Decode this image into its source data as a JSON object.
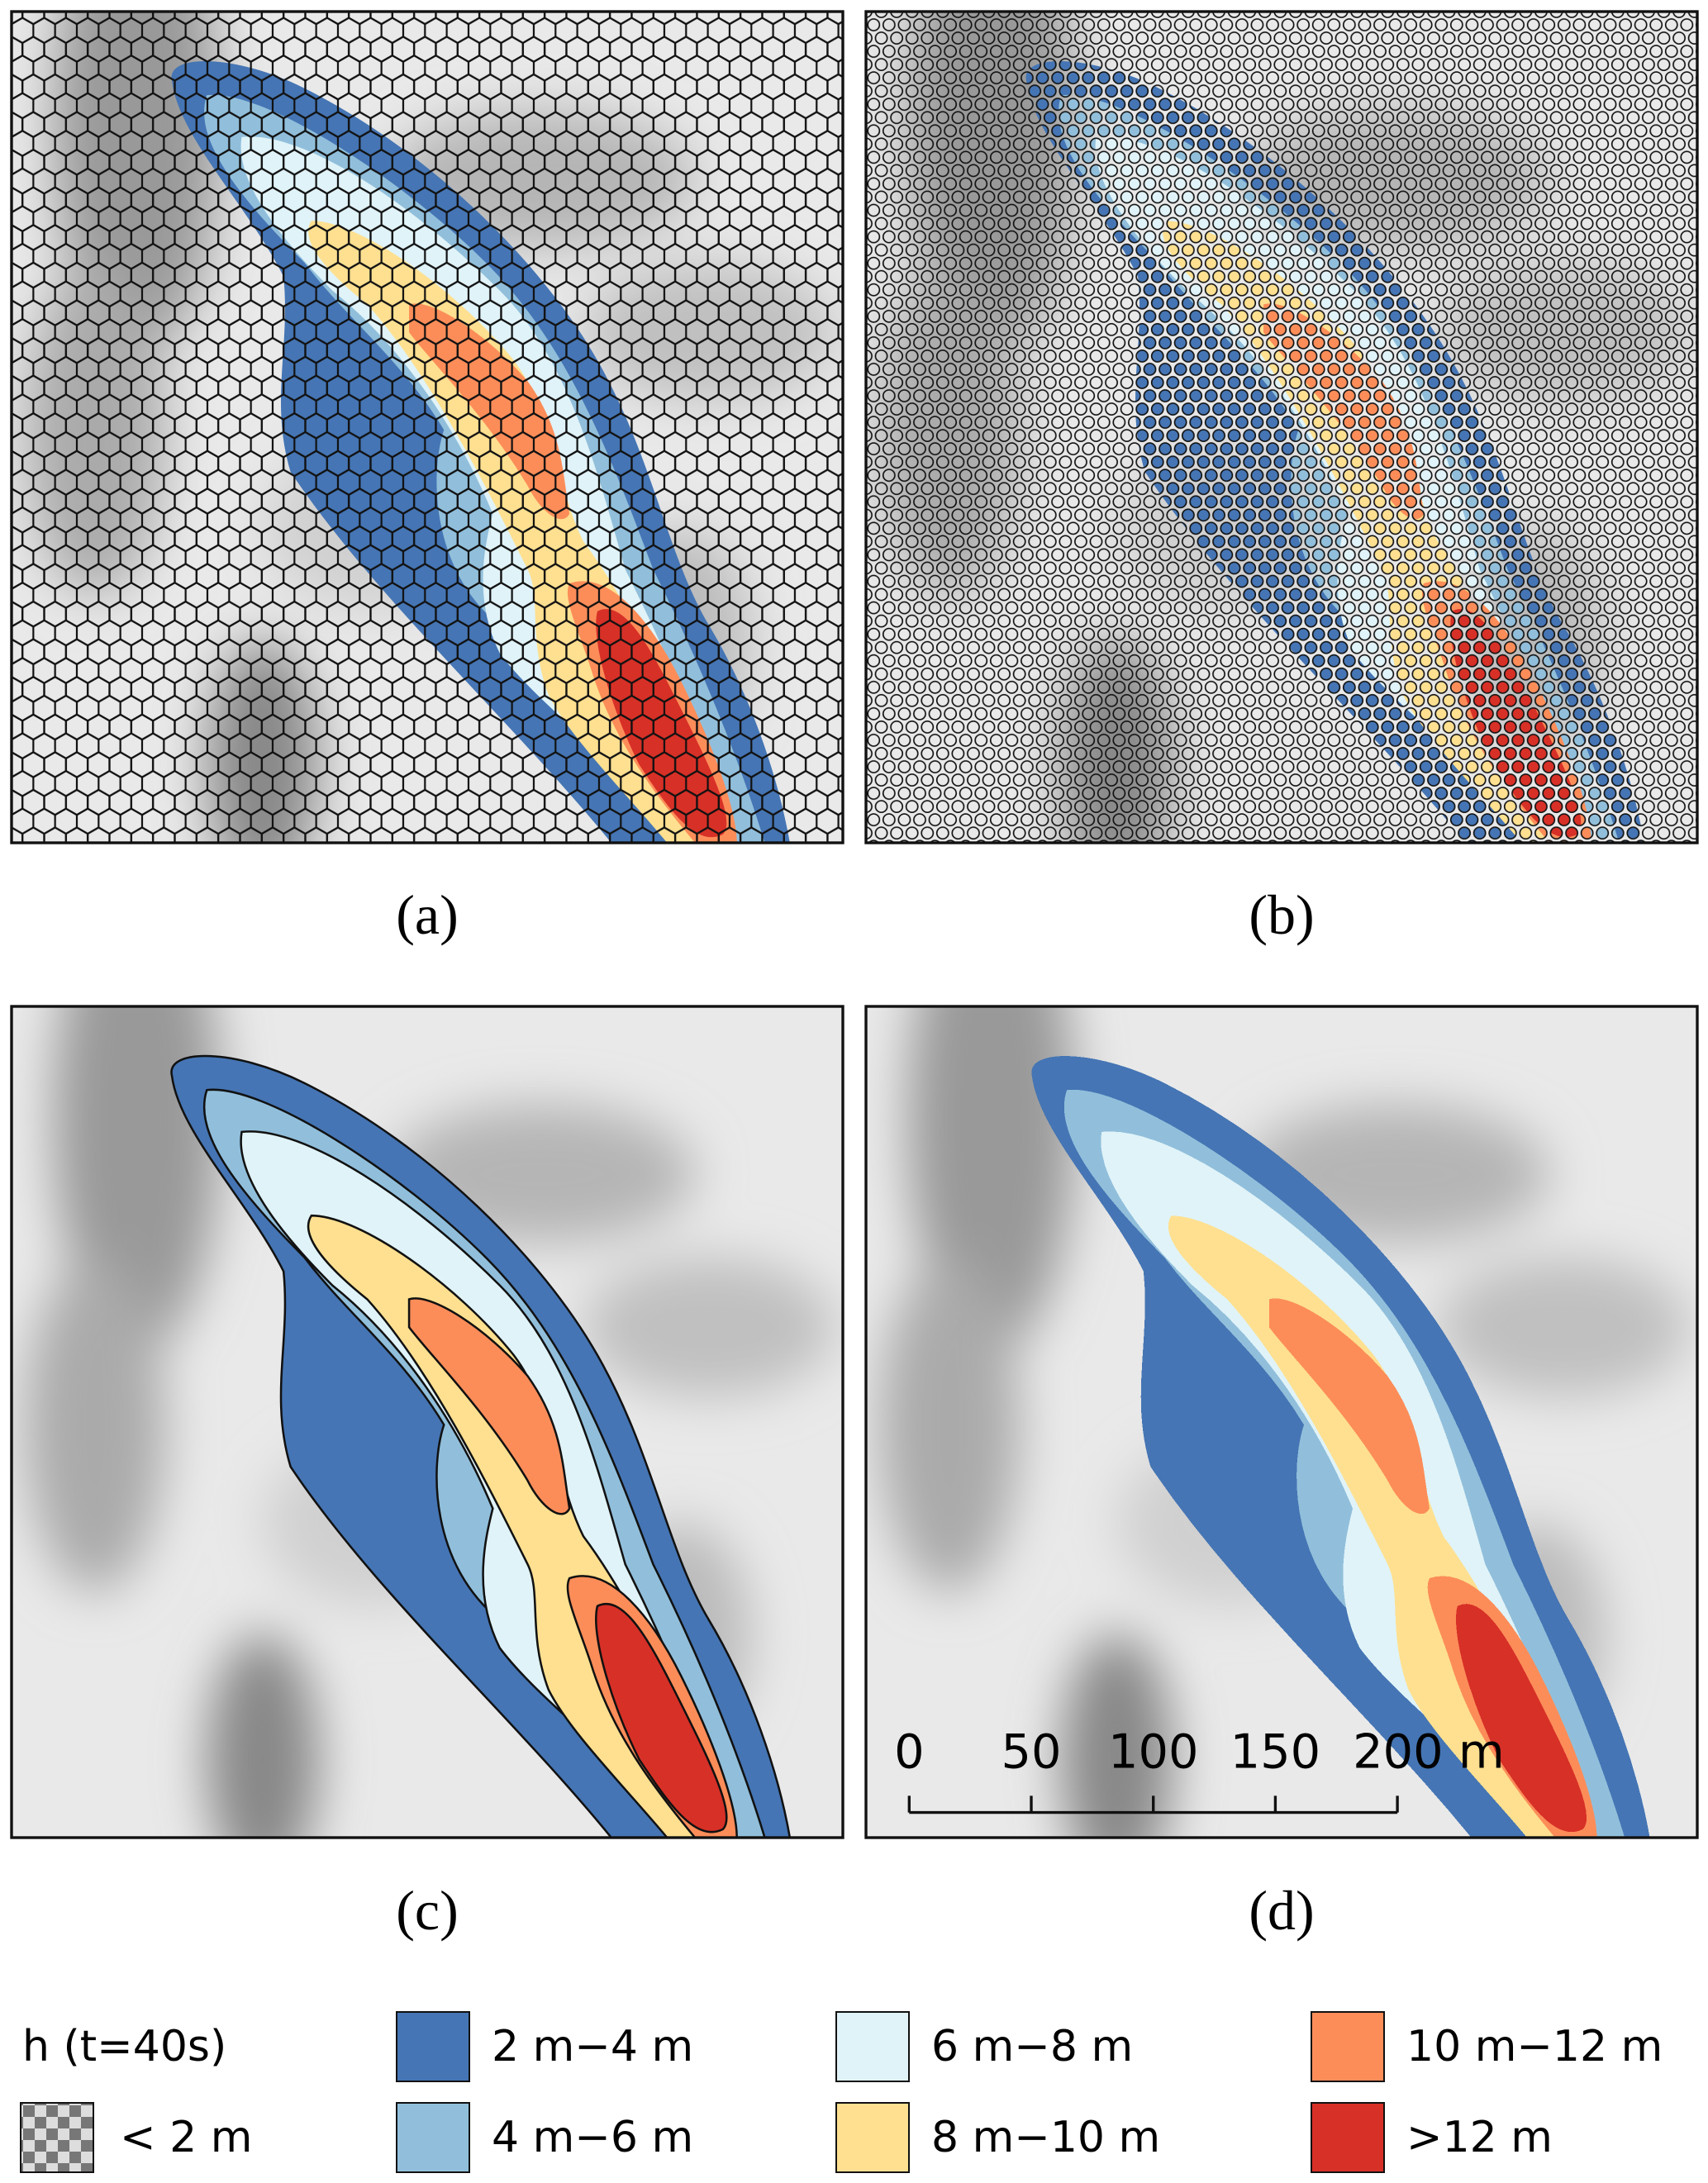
{
  "panels": [
    {
      "label": "(a)"
    },
    {
      "label": "(b)"
    },
    {
      "label": "(c)"
    },
    {
      "label": "(d)"
    }
  ],
  "scale_bar": {
    "ticks": [
      0,
      50,
      100,
      150,
      {
        "value": 200,
        "label": "200 m"
      }
    ]
  },
  "legend": {
    "title": "h (t=40s)",
    "items": [
      {
        "label": "< 2 m"
      },
      {
        "label": "2 m−4 m",
        "color": "#4575b4"
      },
      {
        "label": "4 m−6 m",
        "color": "#91bfdb"
      },
      {
        "label": "6 m−8 m",
        "color": "#e0f3f8"
      },
      {
        "label": "8 m−10 m",
        "color": "#fee090"
      },
      {
        "label": "10 m−12 m",
        "color": "#fc8d59"
      },
      {
        "label": ">12 m",
        "color": "#d73027"
      }
    ]
  }
}
